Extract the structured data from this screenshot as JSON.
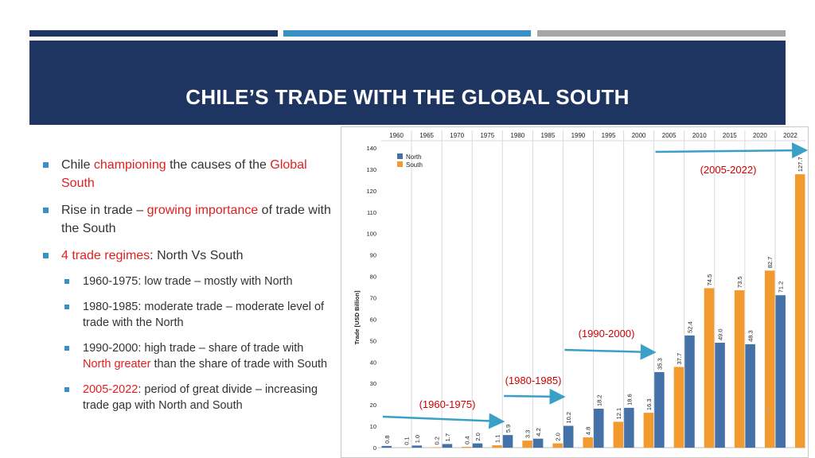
{
  "slide": {
    "title": "CHILE’S TRADE WITH THE GLOBAL SOUTH"
  },
  "bullets": {
    "b1": {
      "pre": "Chile ",
      "hl": "championing",
      "mid": " the causes of the ",
      "hl2": "Global South"
    },
    "b2": {
      "pre": "Rise in trade – ",
      "hl": "growing importance",
      "post": " of trade with the South"
    },
    "b3": {
      "hl": "4 trade regimes",
      "post": ": North Vs South"
    },
    "s1": {
      "text": "1960-1975: low trade – mostly with North"
    },
    "s2": {
      "text": "1980-1985: moderate trade – moderate level of trade with the North"
    },
    "s3": {
      "pre": "1990-2000: high trade – share of trade with ",
      "hl": "North greater",
      "post": " than the share of trade with South"
    },
    "s4": {
      "hl": "2005-2022",
      "post": ": period of great divide – increasing trade gap with North and South"
    }
  },
  "chart_data": {
    "type": "bar",
    "categories": [
      "1960",
      "1965",
      "1970",
      "1975",
      "1980",
      "1985",
      "1990",
      "1995",
      "2000",
      "2005",
      "2010",
      "2015",
      "2020",
      "2022"
    ],
    "series": [
      {
        "name": "North",
        "color": "#4472a8",
        "values": [
          0.8,
          1.0,
          1.7,
          2.0,
          5.9,
          4.2,
          10.2,
          18.2,
          18.6,
          35.3,
          52.4,
          49.0,
          48.3,
          71.2
        ]
      },
      {
        "name": "South",
        "color": "#f39a2f",
        "values": [
          0.1,
          0.2,
          0.4,
          1.1,
          3.3,
          2.0,
          4.8,
          12.1,
          16.3,
          37.7,
          74.5,
          73.5,
          82.7,
          127.7
        ]
      }
    ],
    "ylabel": "Trade [USD Billion]",
    "ylim": [
      0,
      140
    ],
    "yticks": [
      0,
      10,
      20,
      30,
      40,
      50,
      60,
      70,
      80,
      90,
      100,
      110,
      120,
      130,
      140
    ],
    "grid": "vertical",
    "legend": "top-left",
    "annotations": [
      {
        "label": "(1960-1975)",
        "from": "1960",
        "to": "1975"
      },
      {
        "label": "(1980-1985)",
        "from": "1980",
        "to": "1985"
      },
      {
        "label": "(1990-2000)",
        "from": "1990",
        "to": "2000"
      },
      {
        "label": "(2005-2022)",
        "from": "2005",
        "to": "2022"
      }
    ],
    "note": "9"
  }
}
